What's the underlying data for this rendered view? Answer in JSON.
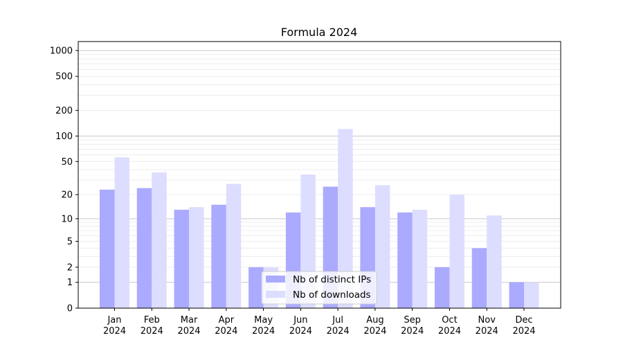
{
  "chart_data": {
    "type": "bar",
    "title": "Formula 2024",
    "xlabel": "",
    "ylabel": "",
    "y_scale": "log10(1+y)",
    "ylim": [
      0,
      1200
    ],
    "y_ticks": [
      0,
      1,
      2,
      5,
      10,
      20,
      50,
      100,
      200,
      500,
      1000
    ],
    "grid": true,
    "legend_position": "lower-center",
    "categories": [
      [
        "Jan",
        "2024"
      ],
      [
        "Feb",
        "2024"
      ],
      [
        "Mar",
        "2024"
      ],
      [
        "Apr",
        "2024"
      ],
      [
        "May",
        "2024"
      ],
      [
        "Jun",
        "2024"
      ],
      [
        "Jul",
        "2024"
      ],
      [
        "Aug",
        "2024"
      ],
      [
        "Sep",
        "2024"
      ],
      [
        "Oct",
        "2024"
      ],
      [
        "Nov",
        "2024"
      ],
      [
        "Dec",
        "2024"
      ]
    ],
    "series": [
      {
        "name": "Nb of distinct IPs",
        "color": "#aaaaff",
        "values": [
          23,
          24,
          13,
          15,
          2,
          12,
          25,
          14,
          12,
          2,
          4,
          1
        ]
      },
      {
        "name": "Nb of downloads",
        "color": "#ddddff",
        "values": [
          56,
          37,
          14,
          27,
          2,
          35,
          121,
          26,
          13,
          20,
          11,
          1
        ]
      }
    ]
  }
}
